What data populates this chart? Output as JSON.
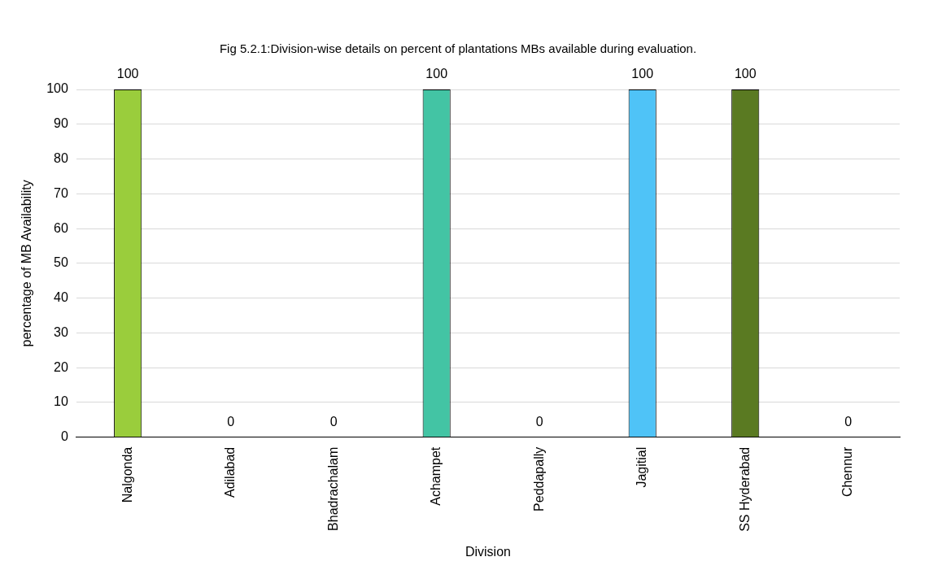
{
  "chart_data": {
    "type": "bar",
    "title": "Fig 5.2.1:Division-wise details on percent of plantations MBs available during evaluation.",
    "xlabel": "Division",
    "ylabel": "percentage of MB Availability",
    "categories": [
      "Nalgonda",
      "Adilabad",
      "Bhadrachalam",
      "Achampet",
      "Peddapally",
      "Jagitial",
      "SS Hyderabad",
      "Chennur"
    ],
    "values": [
      100,
      0,
      0,
      100,
      0,
      100,
      100,
      0
    ],
    "colors": [
      "#9acd3c",
      "#7f7f7f",
      "#7f7f7f",
      "#43c4a4",
      "#7f7f7f",
      "#4fc3f7",
      "#5a7a22",
      "#7f7f7f"
    ],
    "ylim": [
      0,
      100
    ],
    "yticks": [
      0,
      10,
      20,
      30,
      40,
      50,
      60,
      70,
      80,
      90,
      100
    ],
    "grid": "y",
    "data_labels": true,
    "legend": false
  }
}
